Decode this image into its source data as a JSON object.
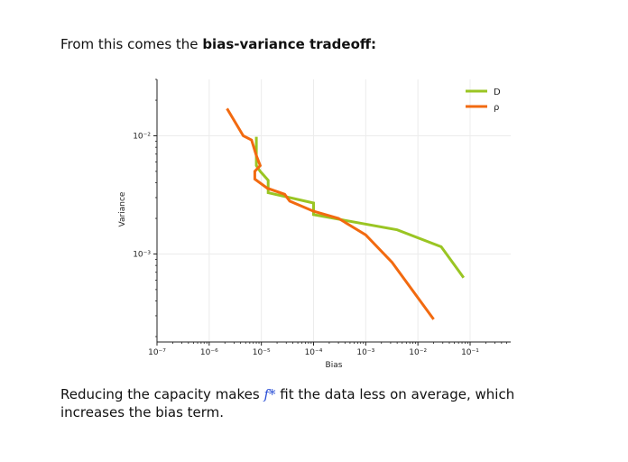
{
  "heading": {
    "prefix": "From this comes the ",
    "bold": "bias-variance tradeoff:"
  },
  "footer": {
    "part1": "Reducing the capacity makes ",
    "symbol": "f*",
    "part2": " fit the data less on average, which increases the bias term."
  },
  "chart_data": {
    "type": "line",
    "xlabel": "Bias",
    "ylabel": "Variance",
    "xscale": "log",
    "yscale": "log",
    "xlim": [
      1e-07,
      0.6
    ],
    "ylim": [
      0.00018,
      0.03
    ],
    "xticks": [
      {
        "value": 1e-07,
        "label": "10⁻⁷"
      },
      {
        "value": 1e-06,
        "label": "10⁻⁶"
      },
      {
        "value": 1e-05,
        "label": "10⁻⁵"
      },
      {
        "value": 0.0001,
        "label": "10⁻⁴"
      },
      {
        "value": 0.001,
        "label": "10⁻³"
      },
      {
        "value": 0.01,
        "label": "10⁻²"
      },
      {
        "value": 0.1,
        "label": "10⁻¹"
      }
    ],
    "yticks": [
      {
        "value": 0.001,
        "label": "10⁻³"
      },
      {
        "value": 0.01,
        "label": "10⁻²"
      }
    ],
    "grid": true,
    "legend_position": "top-right",
    "series": [
      {
        "name": "D",
        "color": "#9ac523",
        "x": [
          8e-06,
          8e-06,
          9.5e-06,
          1.35e-05,
          1.35e-05,
          0.0001,
          0.0001,
          0.004,
          0.028,
          0.075
        ],
        "y": [
          0.0098,
          0.0056,
          0.005,
          0.0042,
          0.0033,
          0.0027,
          0.00215,
          0.0016,
          0.00115,
          0.00063
        ]
      },
      {
        "name": "ρ",
        "color": "#f26a10",
        "x": [
          2.2e-06,
          4.5e-06,
          6.5e-06,
          8e-06,
          9.5e-06,
          7.5e-06,
          7.5e-06,
          1.3e-05,
          2.8e-05,
          3.5e-05,
          0.0001,
          0.0003,
          0.001,
          0.0032,
          0.02
        ],
        "y": [
          0.017,
          0.01,
          0.0092,
          0.0068,
          0.0056,
          0.005,
          0.0043,
          0.0036,
          0.0032,
          0.0028,
          0.0023,
          0.002,
          0.00145,
          0.00085,
          0.00028
        ]
      }
    ]
  }
}
